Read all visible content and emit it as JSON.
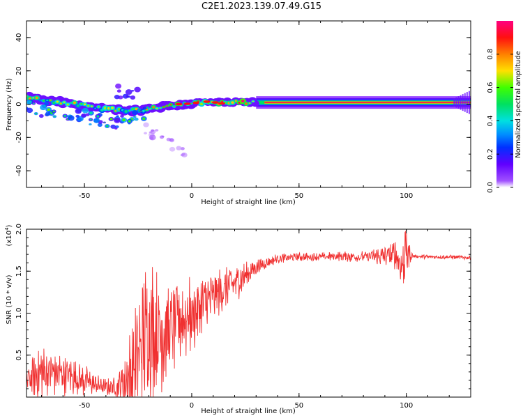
{
  "title": "C2E1.2023.139.07.49.G15",
  "chart_data": [
    {
      "type": "heatmap",
      "xlabel": "Height of straight line (km)",
      "ylabel": "Frequency (Hz)",
      "xlim": [
        -77,
        130
      ],
      "ylim": [
        -50,
        50
      ],
      "xticks": [
        -50,
        0,
        50,
        100
      ],
      "yticks": [
        -40,
        -20,
        0,
        20,
        40
      ],
      "colorbar": {
        "label": "Normalized spectral amplitude",
        "range": [
          0,
          1
        ],
        "ticks": [
          "0.0",
          "0.2",
          "0.4",
          "0.6",
          "0.8"
        ],
        "colormap": "rainbow (white → violet → blue → cyan → green → yellow → red → magenta)"
      },
      "features": [
        {
          "name": "main-band",
          "x_from": -77,
          "x_to": 130,
          "center_freq_hz": [
            [
              -77,
              4
            ],
            [
              -60,
              1
            ],
            [
              -40,
              -3
            ],
            [
              -25,
              -4
            ],
            [
              -18,
              -2
            ],
            [
              -5,
              0
            ],
            [
              5,
              1
            ],
            [
              20,
              1
            ],
            [
              40,
              1
            ],
            [
              130,
              1
            ]
          ],
          "peak_amplitude": 0.9
        },
        {
          "name": "lower-band",
          "x_from": -77,
          "x_to": -20,
          "center_freq_hz": [
            [
              -77,
              -2
            ],
            [
              -60,
              -5
            ],
            [
              -45,
              -9
            ],
            [
              -38,
              -12
            ],
            [
              -30,
              -8
            ],
            [
              -20,
              -5
            ]
          ],
          "peak_amplitude": 0.35
        },
        {
          "name": "scattered-trail",
          "x_from": -22,
          "x_to": -3,
          "center_freq_hz": [
            [
              -22,
              -14
            ],
            [
              -15,
              -20
            ],
            [
              -8,
              -26
            ],
            [
              -3,
              -30
            ]
          ],
          "peak_amplitude": 0.05
        },
        {
          "name": "upper-patch",
          "x_from": -35,
          "x_to": -25,
          "center_freq_hz": [
            [
              -35,
              8
            ],
            [
              -25,
              5
            ]
          ],
          "peak_amplitude": 0.2
        }
      ]
    },
    {
      "type": "line",
      "xlabel": "Height of straight line (km)",
      "ylabel": "SNR (10 * v/v)",
      "scale_label": "(x10",
      "scale_exponent": "4",
      "xlim": [
        -77,
        130
      ],
      "ylim": [
        0,
        2.0
      ],
      "xticks": [
        -50,
        0,
        50,
        100
      ],
      "yticks": [
        "0.5",
        "1.0",
        "1.5",
        "2.0"
      ],
      "color": "#f03030",
      "series": [
        {
          "x": [
            -77,
            -70,
            -60,
            -50,
            -45,
            -40,
            -35,
            -30,
            -25,
            -20,
            -15,
            -10,
            -5,
            0,
            5,
            10,
            15,
            20,
            25,
            30,
            35,
            40,
            50,
            60,
            70,
            80,
            90,
            95,
            98,
            100,
            103,
            110,
            120,
            130
          ],
          "values": [
            0.2,
            0.3,
            0.28,
            0.2,
            0.15,
            0.12,
            0.12,
            0.2,
            0.5,
            0.85,
            0.75,
            0.8,
            0.95,
            0.95,
            1.1,
            1.2,
            1.28,
            1.35,
            1.45,
            1.55,
            1.6,
            1.65,
            1.67,
            1.67,
            1.68,
            1.67,
            1.68,
            1.7,
            1.55,
            1.72,
            1.68,
            1.67,
            1.67,
            1.66
          ],
          "noise": [
            0.15,
            0.25,
            0.2,
            0.15,
            0.1,
            0.08,
            0.1,
            0.35,
            0.6,
            0.7,
            0.55,
            0.5,
            0.45,
            0.35,
            0.3,
            0.25,
            0.2,
            0.2,
            0.12,
            0.08,
            0.05,
            0.05,
            0.04,
            0.04,
            0.05,
            0.06,
            0.1,
            0.15,
            0.2,
            0.2,
            0.02,
            0.02,
            0.02,
            0.02
          ]
        }
      ]
    }
  ]
}
